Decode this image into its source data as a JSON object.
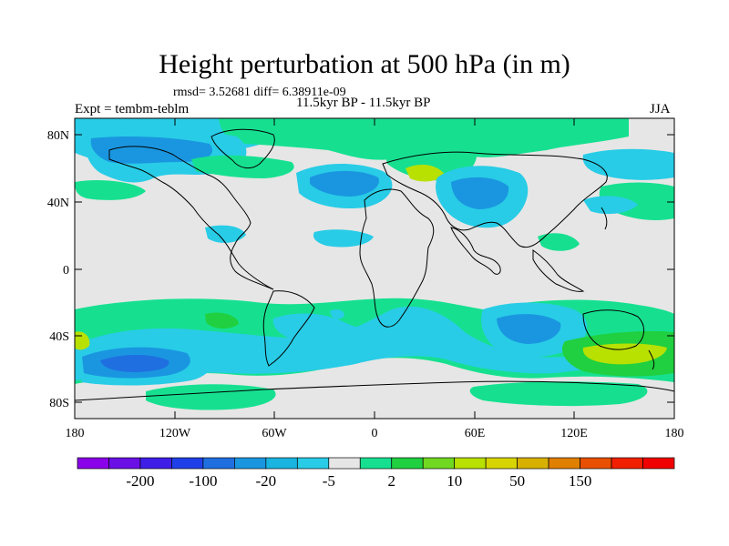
{
  "title": "Height perturbation at 500 hPa (in m)",
  "stats": "rmsd= 3.52681 diff= 6.38911e-09",
  "subtitle": "11.5kyr BP - 11.5kyr BP",
  "left_label": "Expt = tembm-teblm",
  "right_label": "JJA",
  "y_ticks": [
    "80N",
    "40N",
    "0",
    "40S",
    "80S"
  ],
  "x_ticks": [
    "180",
    "120W",
    "60W",
    "0",
    "60E",
    "120E",
    "180"
  ],
  "colorbar": {
    "colors": [
      "#8a00e8",
      "#6a0fe6",
      "#3f1ee8",
      "#1f40e8",
      "#1f6fe0",
      "#1a96e0",
      "#19b4e0",
      "#28cce6",
      "#e6e6e6",
      "#16e090",
      "#20d040",
      "#70d820",
      "#b8e000",
      "#d8d400",
      "#d8b000",
      "#e08000",
      "#e85000",
      "#f02000",
      "#f00000"
    ],
    "labels": [
      "-200",
      "-100",
      "-20",
      "-5",
      "2",
      "10",
      "50",
      "150"
    ]
  },
  "palette": {
    "background": "#e6e6e6",
    "light_blue": "#28cce6",
    "mid_blue": "#1a96e0",
    "deep_blue": "#1f6fe0",
    "green_cyan": "#16e090",
    "green": "#20d040",
    "yellow_green": "#b8e000"
  }
}
